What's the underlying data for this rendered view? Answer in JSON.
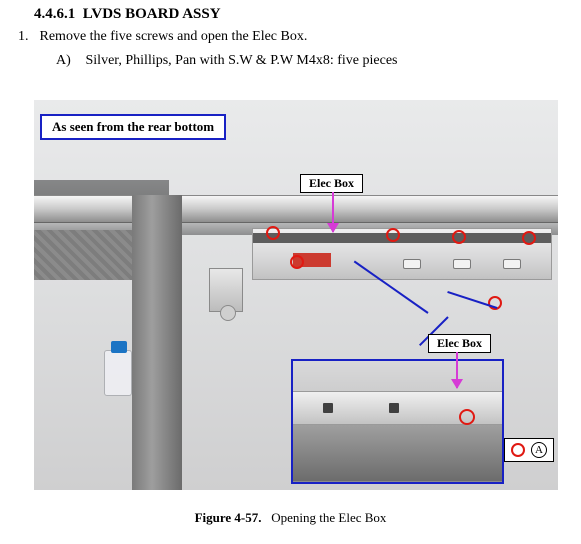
{
  "heading": {
    "number": "4.4.6.1",
    "title": "LVDS BOARD ASSY"
  },
  "step": {
    "number": "1.",
    "text": "Remove the five screws and open the Elec Box."
  },
  "substep": {
    "letter": "A)",
    "text": "Silver, Phillips, Pan with S.W & P.W M4x8: five pieces"
  },
  "figure": {
    "rear_badge": "As seen from the rear bottom",
    "elec_box_label": "Elec Box",
    "caption_prefix": "Figure 4-57.",
    "caption_text": "Opening the Elec Box",
    "legend_letter": "A",
    "colors": {
      "callout_border": "#1821c4",
      "screw_ring": "#e01912",
      "arrow": "#d63bd6"
    },
    "screw_count_main": 5
  }
}
